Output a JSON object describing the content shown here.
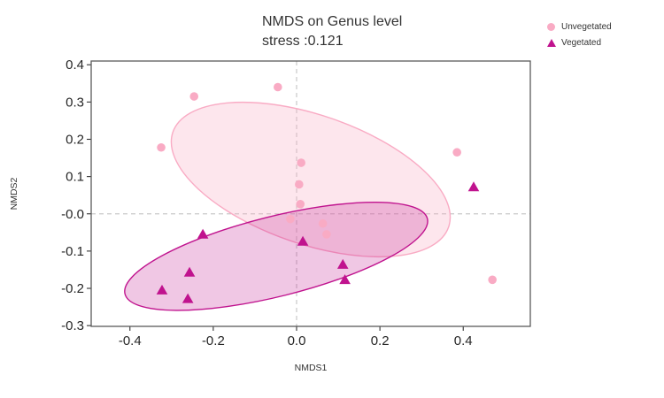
{
  "title": {
    "line1": "NMDS on Genus level",
    "line2": "stress :0.121"
  },
  "legend": {
    "items": [
      {
        "label": "Unvegetated",
        "marker": "circle",
        "color": "#F9ABC4"
      },
      {
        "label": "Vegetated",
        "marker": "triangle",
        "color": "#C0138E"
      }
    ]
  },
  "chart_data": {
    "type": "scatter",
    "title": "NMDS on Genus level",
    "subtitle": "stress :0.121",
    "xlabel": "NMDS1",
    "ylabel": "NMDS2",
    "xlim": [
      -0.493,
      0.561
    ],
    "ylim": [
      -0.302,
      0.41
    ],
    "grid": false,
    "reference_lines": {
      "x": 0,
      "y": 0,
      "style": "dashed",
      "color": "#C9C9C9"
    },
    "x_ticks": {
      "values": [
        -0.4,
        -0.2,
        0.0,
        0.2,
        0.4
      ],
      "labels": [
        "-0.4",
        "-0.2",
        "0.0",
        "0.2",
        "0.4"
      ]
    },
    "y_ticks": {
      "values": [
        0.4,
        0.3,
        0.2,
        0.1,
        0.0,
        -0.1,
        -0.2,
        -0.3
      ],
      "labels": [
        "0.4",
        "0.3",
        "0.2",
        "0.1",
        "-0.0",
        "-0.1",
        "-0.2",
        "-0.3"
      ]
    },
    "series": [
      {
        "name": "Unvegetated",
        "marker": "circle",
        "color": "#F9ABC4",
        "points": [
          [
            -0.325,
            0.178
          ],
          [
            -0.246,
            0.315
          ],
          [
            -0.045,
            0.34
          ],
          [
            0.011,
            0.137
          ],
          [
            0.006,
            0.079
          ],
          [
            0.009,
            0.026
          ],
          [
            -0.015,
            -0.014
          ],
          [
            0.063,
            -0.026
          ],
          [
            0.072,
            -0.055
          ],
          [
            0.385,
            0.165
          ],
          [
            0.47,
            -0.177
          ]
        ]
      },
      {
        "name": "Vegetated",
        "marker": "triangle",
        "color": "#C0138E",
        "points": [
          [
            -0.225,
            -0.055
          ],
          [
            -0.257,
            -0.157
          ],
          [
            -0.323,
            -0.205
          ],
          [
            -0.261,
            -0.228
          ],
          [
            0.015,
            -0.074
          ],
          [
            0.111,
            -0.136
          ],
          [
            0.116,
            -0.177
          ],
          [
            0.425,
            0.072
          ]
        ]
      }
    ],
    "ellipses": [
      {
        "group": "Unvegetated",
        "cx": 0.034,
        "cy": 0.092,
        "rx": 0.35,
        "ry": 0.155,
        "angle_deg": 19,
        "stroke": "#F9ABC4",
        "fill": "rgba(249,171,196,0.30)"
      },
      {
        "group": "Vegetated",
        "cx": -0.049,
        "cy": -0.114,
        "rx": 0.374,
        "ry": 0.096,
        "angle_deg": -14,
        "stroke": "#C0138E",
        "fill": "rgba(192,19,142,0.24)"
      }
    ],
    "legend_position": "top-right"
  }
}
